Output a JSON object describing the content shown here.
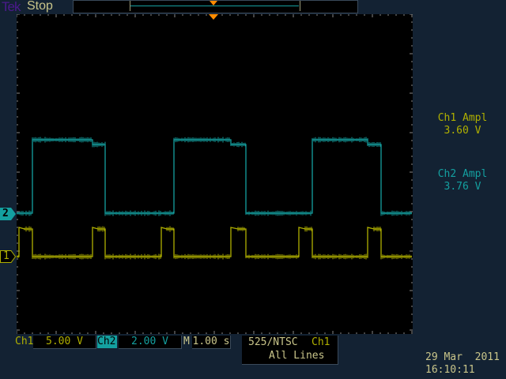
{
  "header": {
    "brand": "Tek",
    "state": "Stop"
  },
  "colors": {
    "ch1": "#b0b000",
    "ch2": "#14a0a0",
    "text": "#c9c58a",
    "orange": "#ff8c00"
  },
  "measurements": [
    {
      "label": "Ch1 Ampl",
      "value": "3.60 V"
    },
    {
      "label": "Ch2 Ampl",
      "value": "3.76 V"
    }
  ],
  "markers": {
    "ch1": "1",
    "ch2": "2"
  },
  "footer": {
    "ch1_label": "Ch1",
    "ch1_scale": "5.00 V",
    "ch2_label": "Ch2",
    "ch2_scale": "2.00 V",
    "time_label": "M",
    "time_scale": "1.00 s",
    "trigger_mode": "525/NTSC",
    "trigger_source": "Ch1",
    "trigger_lines": "All Lines",
    "date": "29 Mar  2011",
    "time": "16:10:11"
  },
  "chart_data": {
    "type": "line",
    "time_per_div_s": 1.0,
    "divisions": {
      "x": 10,
      "y": 8
    },
    "series": [
      {
        "name": "Ch1",
        "volts_per_div": 5.0,
        "points": [
          [
            0,
            0
          ],
          [
            0.06,
            0
          ],
          [
            0.06,
            3.7
          ],
          [
            0.2,
            3.5
          ],
          [
            0.4,
            3.5
          ],
          [
            0.4,
            0
          ],
          [
            1.92,
            0
          ],
          [
            1.92,
            3.7
          ],
          [
            2.06,
            3.5
          ],
          [
            2.24,
            3.5
          ],
          [
            2.24,
            0
          ],
          [
            3.66,
            0
          ],
          [
            3.66,
            3.7
          ],
          [
            3.8,
            3.5
          ],
          [
            3.98,
            3.5
          ],
          [
            3.98,
            0
          ],
          [
            5.42,
            0
          ],
          [
            5.42,
            3.7
          ],
          [
            5.6,
            3.5
          ],
          [
            5.8,
            3.5
          ],
          [
            5.8,
            0
          ],
          [
            7.14,
            0
          ],
          [
            7.14,
            3.7
          ],
          [
            7.3,
            3.5
          ],
          [
            7.48,
            3.5
          ],
          [
            7.48,
            0
          ],
          [
            8.88,
            0
          ],
          [
            8.88,
            3.7
          ],
          [
            9.04,
            3.5
          ],
          [
            9.22,
            3.5
          ],
          [
            9.22,
            0
          ],
          [
            10,
            0
          ]
        ]
      },
      {
        "name": "Ch2",
        "volts_per_div": 2.0,
        "points": [
          [
            0,
            0
          ],
          [
            0.4,
            0
          ],
          [
            0.4,
            3.72
          ],
          [
            1.92,
            3.72
          ],
          [
            1.92,
            3.48
          ],
          [
            2.24,
            3.48
          ],
          [
            2.24,
            0
          ],
          [
            3.98,
            0
          ],
          [
            3.98,
            3.72
          ],
          [
            5.42,
            3.72
          ],
          [
            5.42,
            3.48
          ],
          [
            5.8,
            3.48
          ],
          [
            5.8,
            0
          ],
          [
            7.48,
            0
          ],
          [
            7.48,
            3.72
          ],
          [
            8.88,
            3.72
          ],
          [
            8.88,
            3.48
          ],
          [
            9.22,
            3.48
          ],
          [
            9.22,
            0
          ],
          [
            10,
            0
          ]
        ]
      }
    ]
  }
}
